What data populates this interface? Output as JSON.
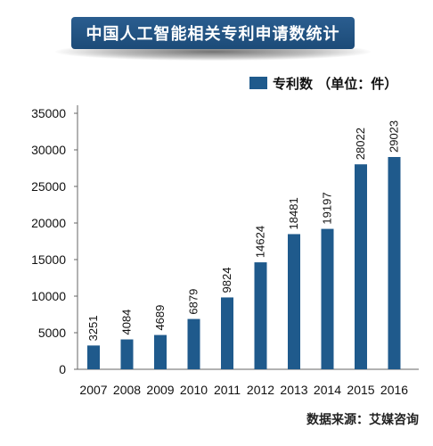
{
  "title": "中国人工智能相关专利申请数统计",
  "source": "数据来源：艾媒咨询",
  "colors": {
    "bar": "#1f5a8c",
    "title_bg": "#1f4f7f",
    "axis": "#666666",
    "text": "#111111"
  },
  "chart_data": {
    "type": "bar",
    "categories": [
      "2007",
      "2008",
      "2009",
      "2010",
      "2011",
      "2012",
      "2013",
      "2014",
      "2015",
      "2016"
    ],
    "series": [
      {
        "name": "专利数 （单位：件）",
        "values": [
          3251,
          4084,
          4689,
          6879,
          9824,
          14624,
          18481,
          19197,
          28022,
          29023
        ]
      }
    ],
    "data_labels": [
      "3251",
      "4084",
      "4689",
      "6879",
      "9824",
      "14624",
      "18481",
      "19197",
      "28022",
      "29023"
    ],
    "yticks": [
      0,
      5000,
      10000,
      15000,
      20000,
      25000,
      30000,
      35000
    ],
    "ylim": [
      0,
      35000
    ],
    "legend_position": "top-right",
    "grid": false
  }
}
